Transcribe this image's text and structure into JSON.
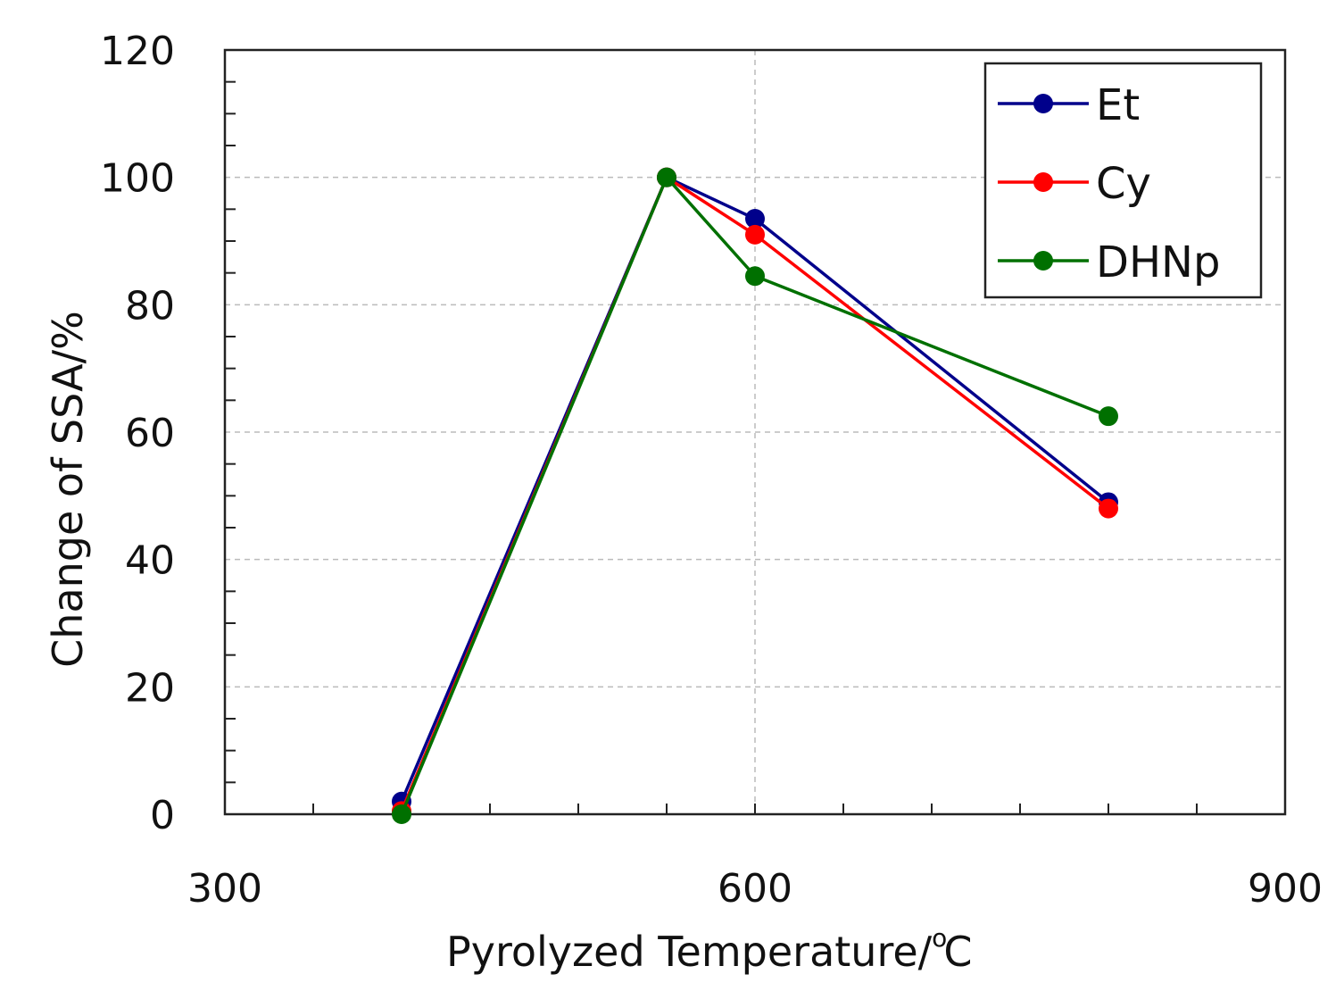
{
  "chart_data": {
    "type": "line",
    "title": "",
    "xlabel": "Pyrolyzed Temperature/",
    "xlabel_unit": "C",
    "xlabel_degree": "o",
    "ylabel": "Change of SSA/%",
    "xlim": [
      300,
      900
    ],
    "ylim": [
      0,
      120
    ],
    "x_ticks": [
      300,
      600,
      900
    ],
    "y_ticks": [
      0,
      20,
      40,
      60,
      80,
      100,
      120
    ],
    "x_tick_labels": [
      "300",
      "600",
      "900"
    ],
    "y_tick_labels": [
      "0",
      "20",
      "40",
      "60",
      "80",
      "100",
      "120"
    ],
    "grid": true,
    "legend_position": "top-right",
    "series": [
      {
        "name": "Et",
        "color": "#00008b",
        "x": [
          400,
          550,
          600,
          800
        ],
        "y": [
          2,
          100,
          93.5,
          49
        ]
      },
      {
        "name": "Cy",
        "color": "#ff0000",
        "x": [
          400,
          550,
          600,
          800
        ],
        "y": [
          0.5,
          100,
          91,
          48
        ]
      },
      {
        "name": "DHNp",
        "color": "#007000",
        "x": [
          400,
          550,
          600,
          800
        ],
        "y": [
          0,
          100,
          84.5,
          62.5
        ]
      }
    ]
  }
}
